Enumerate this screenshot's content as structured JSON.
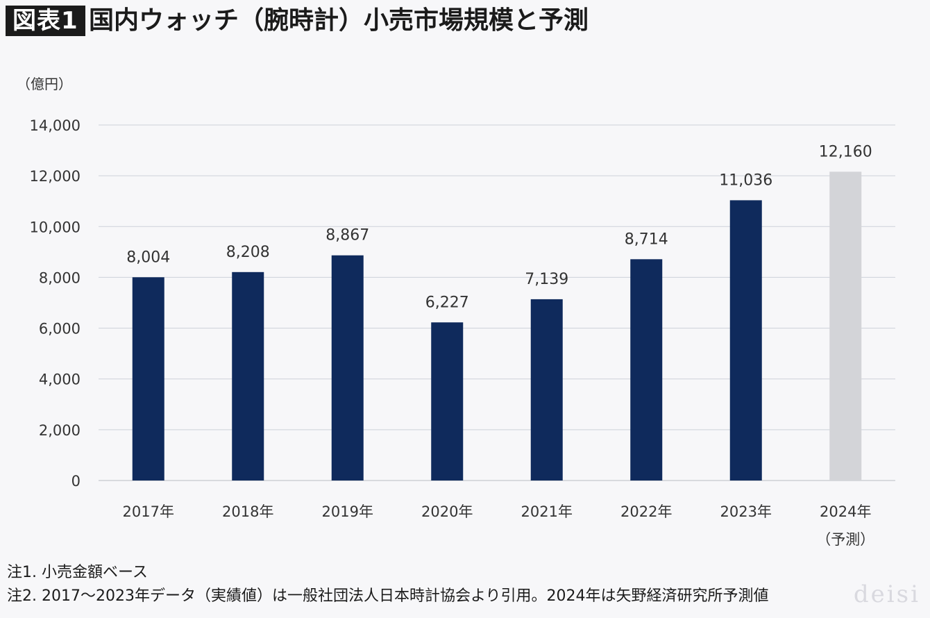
{
  "header": {
    "badge": "図表1",
    "title": "国内ウォッチ（腕時計）小売市場規模と予測"
  },
  "chart_data": {
    "type": "bar",
    "title": "国内ウォッチ（腕時計）小売市場規模と予測",
    "ylabel": "（億円）",
    "xlabel": "",
    "ylim": [
      0,
      14000
    ],
    "yticks": [
      "0",
      "2,000",
      "4,000",
      "6,000",
      "8,000",
      "10,000",
      "12,000",
      "14,000"
    ],
    "categories": [
      "2017年",
      "2018年",
      "2019年",
      "2020年",
      "2021年",
      "2022年",
      "2023年",
      "2024年"
    ],
    "category_sublabels": [
      "",
      "",
      "",
      "",
      "",
      "",
      "",
      "（予測）"
    ],
    "values": [
      8004,
      8208,
      8867,
      6227,
      7139,
      8714,
      11036,
      12160
    ],
    "value_labels": [
      "8,004",
      "8,208",
      "8,867",
      "6,227",
      "7,139",
      "8,714",
      "11,036",
      "12,160"
    ],
    "bar_colors": [
      "#0f2a5c",
      "#0f2a5c",
      "#0f2a5c",
      "#0f2a5c",
      "#0f2a5c",
      "#0f2a5c",
      "#0f2a5c",
      "#d3d4d8"
    ],
    "grid": true,
    "legend": "none"
  },
  "notes": {
    "note1": "注1. 小売金額ベース",
    "note2": "注2. 2017～2023年データ（実績値）は一般社団法人日本時計協会より引用。2024年は矢野経済研究所予測値"
  },
  "watermark": "deisi"
}
